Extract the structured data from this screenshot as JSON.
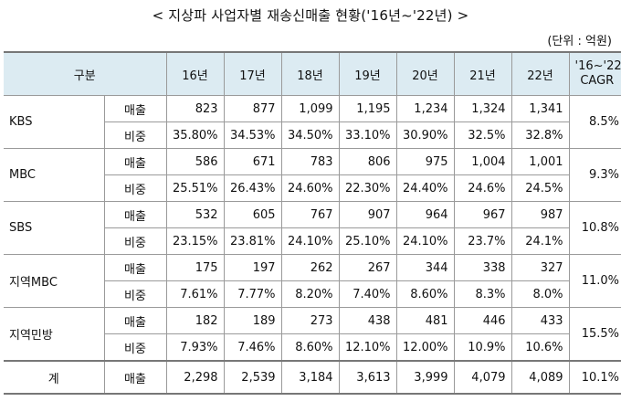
{
  "title": "< 지상파 사업자별 재송신매출 현황('16년~'22년) >",
  "unit": "(단위 : 억원)",
  "header": {
    "category": "구분",
    "years": [
      "16년",
      "17년",
      "18년",
      "19년",
      "20년",
      "21년",
      "22년"
    ],
    "cagr_line1": "'16~'22",
    "cagr_line2": "CAGR"
  },
  "rows": [
    {
      "company": "KBS",
      "sales_label": "매출",
      "sales": [
        "823",
        "877",
        "1,099",
        "1,195",
        "1,234",
        "1,324",
        "1,341"
      ],
      "share_label": "비중",
      "share": [
        "35.80%",
        "34.53%",
        "34.50%",
        "33.10%",
        "30.90%",
        "32.5%",
        "32.8%"
      ],
      "cagr": "8.5%"
    },
    {
      "company": "MBC",
      "sales_label": "매출",
      "sales": [
        "586",
        "671",
        "783",
        "806",
        "975",
        "1,004",
        "1,001"
      ],
      "share_label": "비중",
      "share": [
        "25.51%",
        "26.43%",
        "24.60%",
        "22.30%",
        "24.40%",
        "24.6%",
        "24.5%"
      ],
      "cagr": "9.3%"
    },
    {
      "company": "SBS",
      "sales_label": "매출",
      "sales": [
        "532",
        "605",
        "767",
        "907",
        "964",
        "967",
        "987"
      ],
      "share_label": "비중",
      "share": [
        "23.15%",
        "23.81%",
        "24.10%",
        "25.10%",
        "24.10%",
        "23.7%",
        "24.1%"
      ],
      "cagr": "10.8%"
    },
    {
      "company": "지역MBC",
      "sales_label": "매출",
      "sales": [
        "175",
        "197",
        "262",
        "267",
        "344",
        "338",
        "327"
      ],
      "share_label": "비중",
      "share": [
        "7.61%",
        "7.77%",
        "8.20%",
        "7.40%",
        "8.60%",
        "8.3%",
        "8.0%"
      ],
      "cagr": "11.0%"
    },
    {
      "company": "지역민방",
      "sales_label": "매출",
      "sales": [
        "182",
        "189",
        "273",
        "438",
        "481",
        "446",
        "433"
      ],
      "share_label": "비중",
      "share": [
        "7.93%",
        "7.46%",
        "8.60%",
        "12.10%",
        "12.00%",
        "10.9%",
        "10.6%"
      ],
      "cagr": "15.5%"
    }
  ],
  "total": {
    "label": "계",
    "sales_label": "매출",
    "sales": [
      "2,298",
      "2,539",
      "3,184",
      "3,613",
      "3,999",
      "4,079",
      "4,089"
    ],
    "cagr": "10.1%"
  },
  "colors": {
    "header_bg": "#dcebf2",
    "border": "#9a9a9a"
  }
}
